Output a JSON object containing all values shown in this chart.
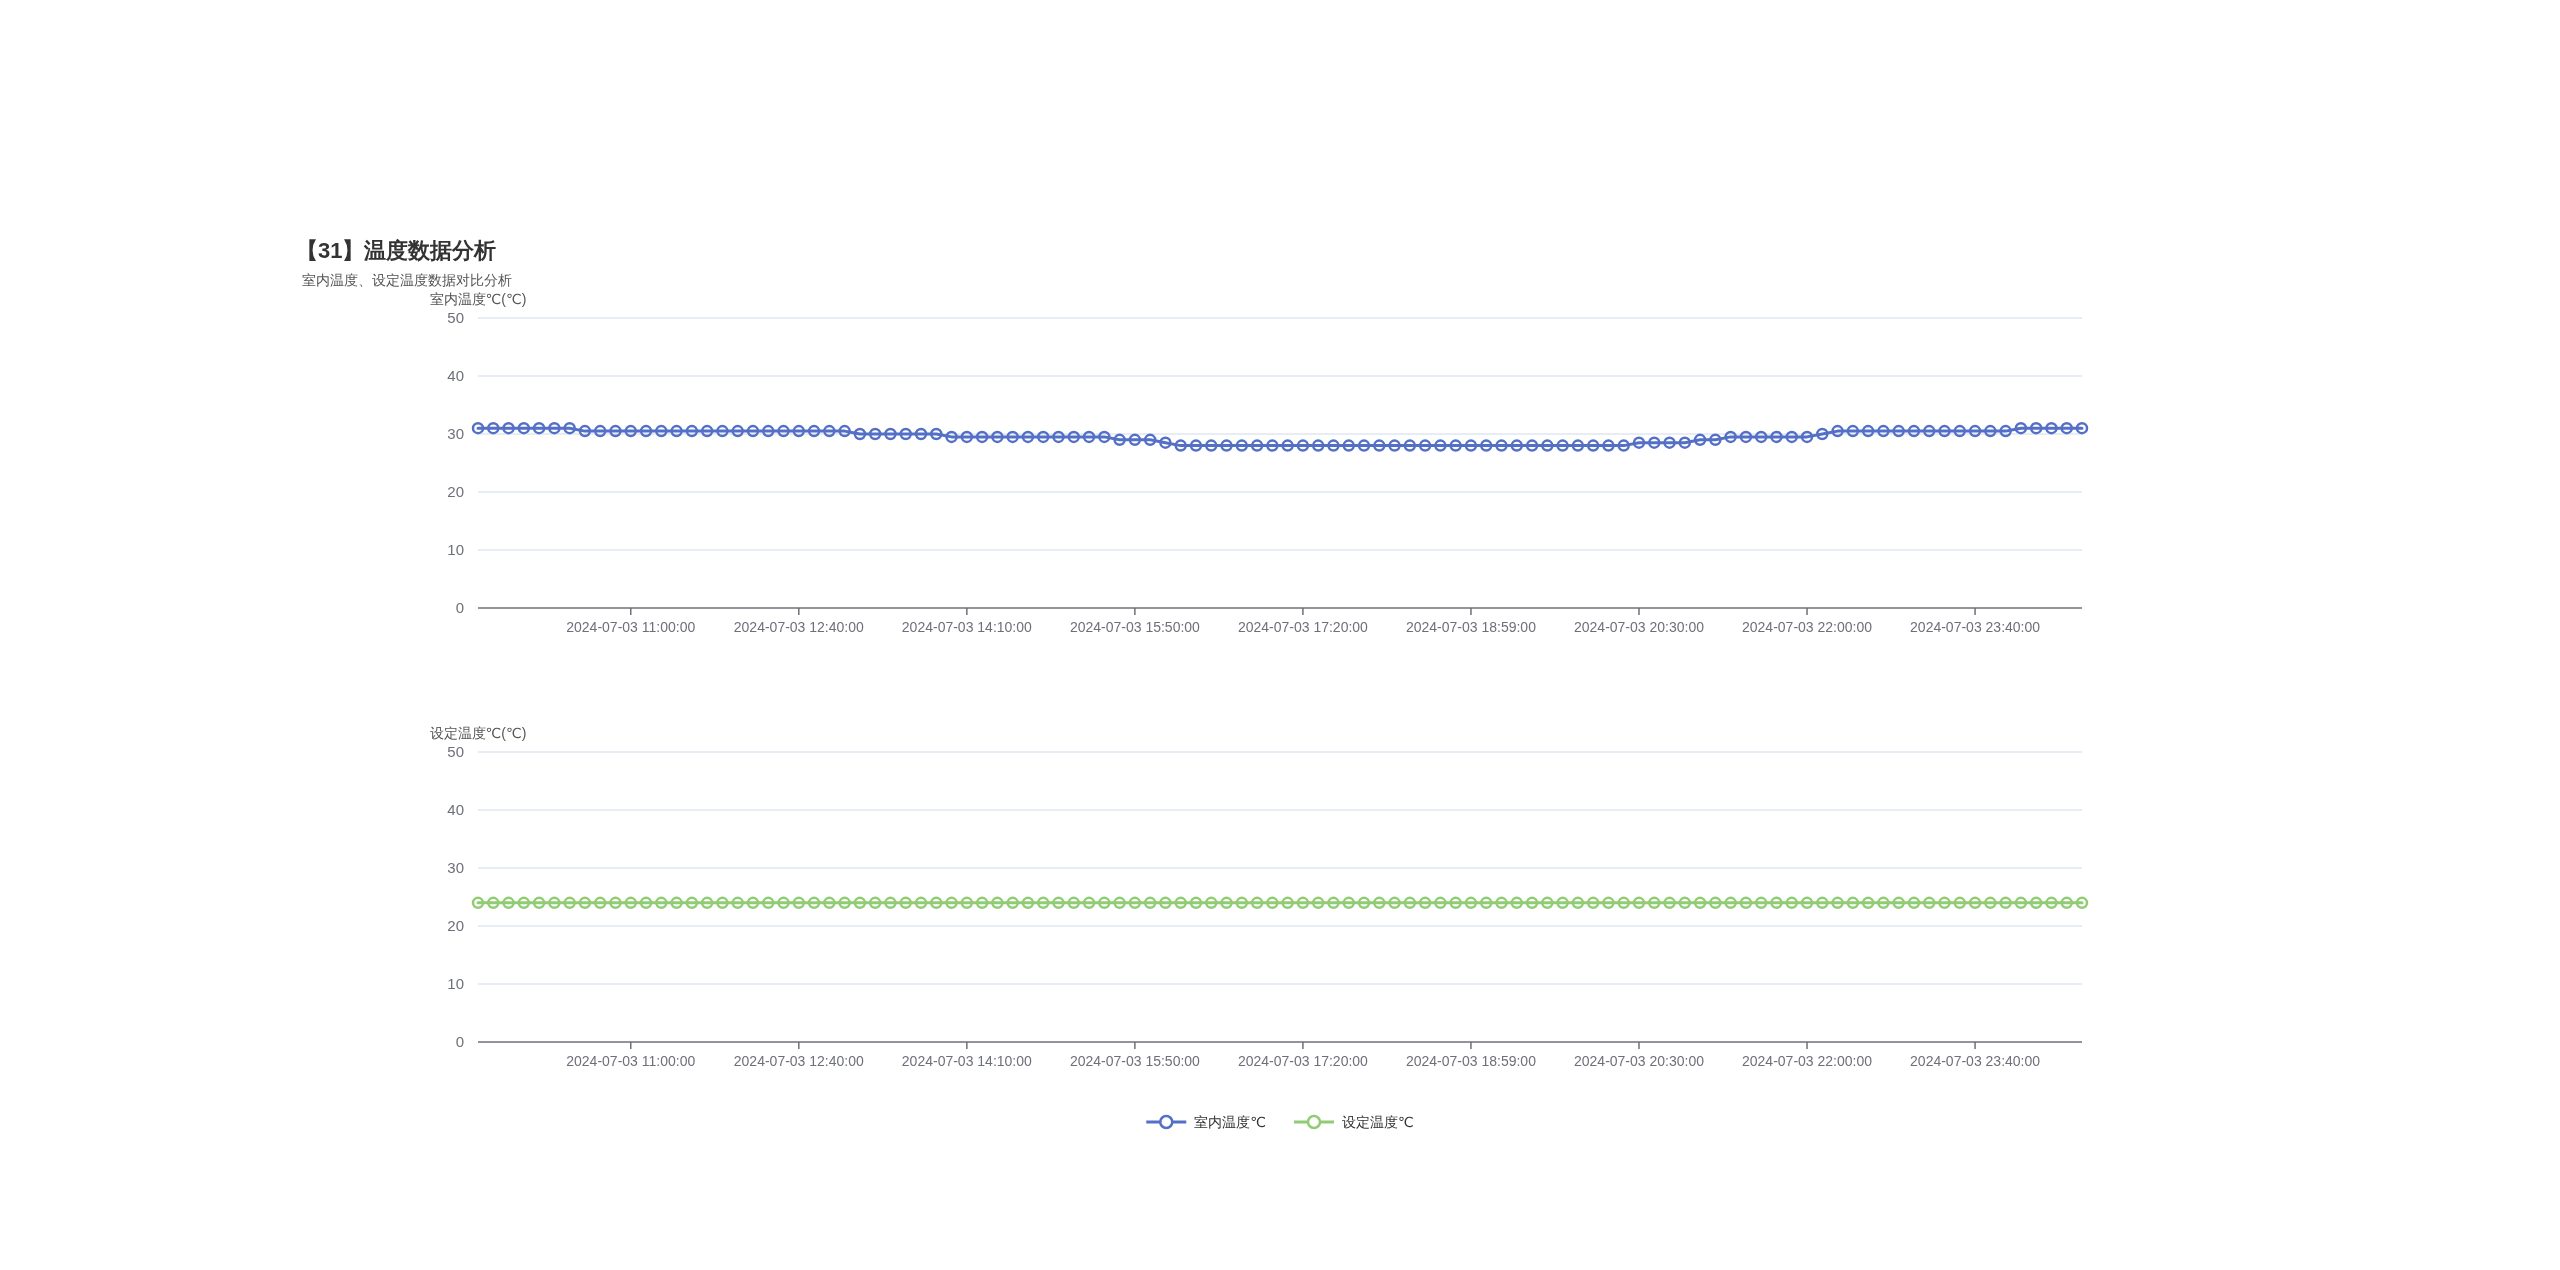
{
  "chart_data": [
    {
      "type": "line",
      "title": "【31】温度数据分析",
      "subtitle": "室内温度、设定温度数据对比分析",
      "ylabel": "室内温度℃(℃)",
      "categories": [
        null,
        null,
        null,
        null,
        null,
        null,
        null,
        null,
        null,
        null,
        "2024-07-03 11:00:00",
        null,
        null,
        null,
        null,
        null,
        null,
        null,
        null,
        null,
        null,
        "2024-07-03 12:40:00",
        null,
        null,
        null,
        null,
        null,
        null,
        null,
        null,
        null,
        null,
        "2024-07-03 14:10:00",
        null,
        null,
        null,
        null,
        null,
        null,
        null,
        null,
        null,
        null,
        "2024-07-03 15:50:00",
        null,
        null,
        null,
        null,
        null,
        null,
        null,
        null,
        null,
        null,
        "2024-07-03 17:20:00",
        null,
        null,
        null,
        null,
        null,
        null,
        null,
        null,
        null,
        null,
        "2024-07-03 18:59:00",
        null,
        null,
        null,
        null,
        null,
        null,
        null,
        null,
        null,
        null,
        "2024-07-03 20:30:00",
        null,
        null,
        null,
        null,
        null,
        null,
        null,
        null,
        null,
        null,
        "2024-07-03 22:00:00",
        null,
        null,
        null,
        null,
        null,
        null,
        null,
        null,
        null,
        null,
        "2024-07-03 23:40:00",
        null,
        null,
        null,
        null,
        null,
        null,
        null
      ],
      "series": [
        {
          "name": "室内温度℃",
          "color": "#5470c6",
          "values": [
            31,
            31,
            31,
            31,
            31,
            31,
            31,
            30.5,
            30.5,
            30.5,
            30.5,
            30.5,
            30.5,
            30.5,
            30.5,
            30.5,
            30.5,
            30.5,
            30.5,
            30.5,
            30.5,
            30.5,
            30.5,
            30.5,
            30.5,
            30,
            30,
            30,
            30,
            30,
            30,
            29.5,
            29.5,
            29.5,
            29.5,
            29.5,
            29.5,
            29.5,
            29.5,
            29.5,
            29.5,
            29.5,
            29,
            29,
            29,
            28.5,
            28,
            28,
            28,
            28,
            28,
            28,
            28,
            28,
            28,
            28,
            28,
            28,
            28,
            28,
            28,
            28,
            28,
            28,
            28,
            28,
            28,
            28,
            28,
            28,
            28,
            28,
            28,
            28,
            28,
            28,
            28.5,
            28.5,
            28.5,
            28.5,
            29,
            29,
            29.5,
            29.5,
            29.5,
            29.5,
            29.5,
            29.5,
            30,
            30.5,
            30.5,
            30.5,
            30.5,
            30.5,
            30.5,
            30.5,
            30.5,
            30.5,
            30.5,
            30.5,
            30.5,
            31,
            31,
            31,
            31,
            31
          ]
        }
      ],
      "ylim": [
        0,
        50
      ],
      "yticks": [
        0,
        10,
        20,
        30,
        40,
        50
      ],
      "grid": "y",
      "marker": "circle",
      "line_style": "solid",
      "legend": "bottom"
    },
    {
      "type": "line",
      "ylabel": "设定温度℃(℃)",
      "categories": [
        null,
        null,
        null,
        null,
        null,
        null,
        null,
        null,
        null,
        null,
        "2024-07-03 11:00:00",
        null,
        null,
        null,
        null,
        null,
        null,
        null,
        null,
        null,
        null,
        "2024-07-03 12:40:00",
        null,
        null,
        null,
        null,
        null,
        null,
        null,
        null,
        null,
        null,
        "2024-07-03 14:10:00",
        null,
        null,
        null,
        null,
        null,
        null,
        null,
        null,
        null,
        null,
        "2024-07-03 15:50:00",
        null,
        null,
        null,
        null,
        null,
        null,
        null,
        null,
        null,
        null,
        "2024-07-03 17:20:00",
        null,
        null,
        null,
        null,
        null,
        null,
        null,
        null,
        null,
        null,
        "2024-07-03 18:59:00",
        null,
        null,
        null,
        null,
        null,
        null,
        null,
        null,
        null,
        null,
        "2024-07-03 20:30:00",
        null,
        null,
        null,
        null,
        null,
        null,
        null,
        null,
        null,
        null,
        "2024-07-03 22:00:00",
        null,
        null,
        null,
        null,
        null,
        null,
        null,
        null,
        null,
        null,
        "2024-07-03 23:40:00",
        null,
        null,
        null,
        null,
        null,
        null,
        null
      ],
      "series": [
        {
          "name": "设定温度℃",
          "color": "#91cc75",
          "values": [
            24,
            24,
            24,
            24,
            24,
            24,
            24,
            24,
            24,
            24,
            24,
            24,
            24,
            24,
            24,
            24,
            24,
            24,
            24,
            24,
            24,
            24,
            24,
            24,
            24,
            24,
            24,
            24,
            24,
            24,
            24,
            24,
            24,
            24,
            24,
            24,
            24,
            24,
            24,
            24,
            24,
            24,
            24,
            24,
            24,
            24,
            24,
            24,
            24,
            24,
            24,
            24,
            24,
            24,
            24,
            24,
            24,
            24,
            24,
            24,
            24,
            24,
            24,
            24,
            24,
            24,
            24,
            24,
            24,
            24,
            24,
            24,
            24,
            24,
            24,
            24,
            24,
            24,
            24,
            24,
            24,
            24,
            24,
            24,
            24,
            24,
            24,
            24,
            24,
            24,
            24,
            24,
            24,
            24,
            24,
            24,
            24,
            24,
            24,
            24,
            24,
            24,
            24,
            24,
            24,
            24
          ]
        }
      ],
      "ylim": [
        0,
        50
      ],
      "yticks": [
        0,
        10,
        20,
        30,
        40,
        50
      ],
      "grid": "y",
      "marker": "circle",
      "line_style": "solid",
      "legend": "bottom"
    }
  ]
}
